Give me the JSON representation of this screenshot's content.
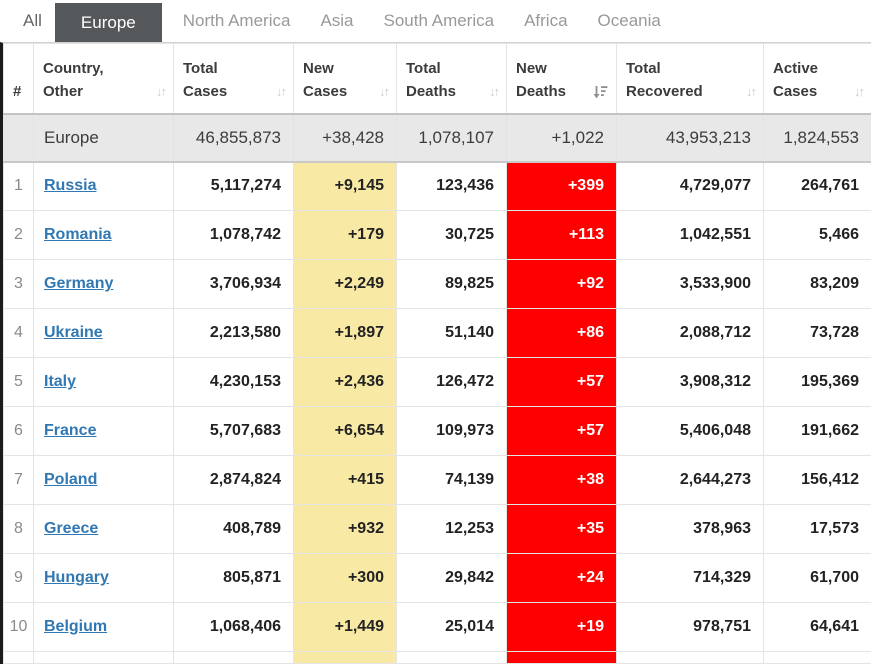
{
  "tabs": [
    {
      "label": "All",
      "active": false
    },
    {
      "label": "Europe",
      "active": true
    },
    {
      "label": "North America",
      "active": false
    },
    {
      "label": "Asia",
      "active": false
    },
    {
      "label": "South America",
      "active": false
    },
    {
      "label": "Africa",
      "active": false
    },
    {
      "label": "Oceania",
      "active": false
    }
  ],
  "table": {
    "columns": [
      {
        "key": "num",
        "label_top": "",
        "label_bottom": "#",
        "sortable": false,
        "sort_state": "none"
      },
      {
        "key": "country",
        "label_top": "Country,",
        "label_bottom": "Other",
        "sortable": true,
        "sort_state": "unsorted"
      },
      {
        "key": "total_cases",
        "label_top": "Total",
        "label_bottom": "Cases",
        "sortable": true,
        "sort_state": "unsorted"
      },
      {
        "key": "new_cases",
        "label_top": "New",
        "label_bottom": "Cases",
        "sortable": true,
        "sort_state": "unsorted"
      },
      {
        "key": "total_deaths",
        "label_top": "Total",
        "label_bottom": "Deaths",
        "sortable": true,
        "sort_state": "unsorted"
      },
      {
        "key": "new_deaths",
        "label_top": "New",
        "label_bottom": "Deaths",
        "sortable": true,
        "sort_state": "sorted-desc"
      },
      {
        "key": "total_recovered",
        "label_top": "Total",
        "label_bottom": "Recovered",
        "sortable": true,
        "sort_state": "unsorted"
      },
      {
        "key": "active_cases",
        "label_top": "Active",
        "label_bottom": "Cases",
        "sortable": true,
        "sort_state": "unsorted"
      }
    ],
    "summary_row": {
      "num": "",
      "country": "Europe",
      "total_cases": "46,855,873",
      "new_cases": "+38,428",
      "total_deaths": "1,078,107",
      "new_deaths": "+1,022",
      "total_recovered": "43,953,213",
      "active_cases": "1,824,553"
    },
    "rows": [
      {
        "num": "1",
        "country": "Russia",
        "total_cases": "5,117,274",
        "new_cases": "+9,145",
        "total_deaths": "123,436",
        "new_deaths": "+399",
        "total_recovered": "4,729,077",
        "active_cases": "264,761"
      },
      {
        "num": "2",
        "country": "Romania",
        "total_cases": "1,078,742",
        "new_cases": "+179",
        "total_deaths": "30,725",
        "new_deaths": "+113",
        "total_recovered": "1,042,551",
        "active_cases": "5,466"
      },
      {
        "num": "3",
        "country": "Germany",
        "total_cases": "3,706,934",
        "new_cases": "+2,249",
        "total_deaths": "89,825",
        "new_deaths": "+92",
        "total_recovered": "3,533,900",
        "active_cases": "83,209"
      },
      {
        "num": "4",
        "country": "Ukraine",
        "total_cases": "2,213,580",
        "new_cases": "+1,897",
        "total_deaths": "51,140",
        "new_deaths": "+86",
        "total_recovered": "2,088,712",
        "active_cases": "73,728"
      },
      {
        "num": "5",
        "country": "Italy",
        "total_cases": "4,230,153",
        "new_cases": "+2,436",
        "total_deaths": "126,472",
        "new_deaths": "+57",
        "total_recovered": "3,908,312",
        "active_cases": "195,369"
      },
      {
        "num": "6",
        "country": "France",
        "total_cases": "5,707,683",
        "new_cases": "+6,654",
        "total_deaths": "109,973",
        "new_deaths": "+57",
        "total_recovered": "5,406,048",
        "active_cases": "191,662"
      },
      {
        "num": "7",
        "country": "Poland",
        "total_cases": "2,874,824",
        "new_cases": "+415",
        "total_deaths": "74,139",
        "new_deaths": "+38",
        "total_recovered": "2,644,273",
        "active_cases": "156,412"
      },
      {
        "num": "8",
        "country": "Greece",
        "total_cases": "408,789",
        "new_cases": "+932",
        "total_deaths": "12,253",
        "new_deaths": "+35",
        "total_recovered": "378,963",
        "active_cases": "17,573"
      },
      {
        "num": "9",
        "country": "Hungary",
        "total_cases": "805,871",
        "new_cases": "+300",
        "total_deaths": "29,842",
        "new_deaths": "+24",
        "total_recovered": "714,329",
        "active_cases": "61,700"
      },
      {
        "num": "10",
        "country": "Belgium",
        "total_cases": "1,068,406",
        "new_cases": "+1,449",
        "total_deaths": "25,014",
        "new_deaths": "+19",
        "total_recovered": "978,751",
        "active_cases": "64,641"
      }
    ]
  },
  "colors": {
    "active_tab_bg": "#54585b",
    "active_tab_text": "#ffffff",
    "new_cases_bg": "#F8E9A5",
    "new_deaths_bg": "#FF0000",
    "new_deaths_text": "#ffffff",
    "summary_row_bg": "#e8e8e8",
    "country_link": "#3178b2"
  },
  "icons": {
    "unsorted": "sort-unsorted-icon",
    "sorted_desc": "sort-desc-icon"
  }
}
